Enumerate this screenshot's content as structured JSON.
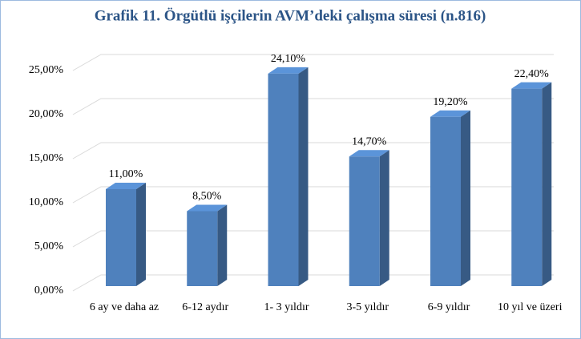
{
  "chart_data": {
    "type": "bar3d",
    "title": "Grafik 11. Örgütlü işçilerin AVM’deki çalışma süresi (n.816)",
    "categories": [
      "6 ay ve daha az",
      "6-12 aydır",
      "1- 3 yıldır",
      "3-5 yıldır",
      "6-9 yıldır",
      "10 yıl ve üzeri"
    ],
    "values": [
      11.0,
      8.5,
      24.1,
      14.7,
      19.2,
      22.4
    ],
    "value_labels": [
      "11,00%",
      "8,50%",
      "24,10%",
      "14,70%",
      "19,20%",
      "22,40%"
    ],
    "color": "#4f81bd",
    "ylim": [
      0,
      25
    ],
    "yticks": [
      {
        "value": 0,
        "label": "0,00%"
      },
      {
        "value": 5,
        "label": "5,00%"
      },
      {
        "value": 10,
        "label": "10,00%"
      },
      {
        "value": 15,
        "label": "15,00%"
      },
      {
        "value": 20,
        "label": "20,00%"
      },
      {
        "value": 25,
        "label": "25,00%"
      }
    ],
    "grid": true
  }
}
